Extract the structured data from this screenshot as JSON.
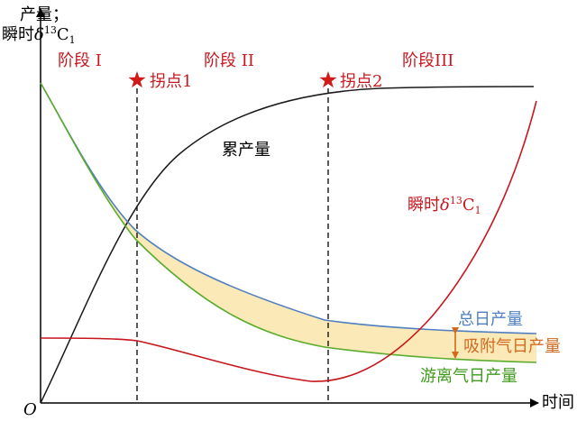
{
  "axis": {
    "y_label_line1": "产量；",
    "y_label_line2_prefix": "瞬时",
    "y_label_delta": "δ",
    "y_label_sup": "13",
    "y_label_c": "C",
    "y_label_sub": "1",
    "x_label": "时间",
    "origin": "O"
  },
  "stages": [
    "阶段 I",
    "阶段 II",
    "阶段III"
  ],
  "inflections": [
    {
      "label": "拐点1",
      "marker": "star-icon"
    },
    {
      "label": "拐点2",
      "marker": "star-icon"
    }
  ],
  "curves": {
    "cumulative": "累产量",
    "isotope_prefix": "瞬时",
    "isotope_delta": "δ",
    "isotope_sup": "13",
    "isotope_c": "C",
    "isotope_sub": "1",
    "total": "总日产量",
    "adsorbed": "吸附气日产量",
    "free": "游离气日产量"
  },
  "colors": {
    "axis": "#000000",
    "cumulative": "#1a1a1a",
    "isotope": "#c8161d",
    "total": "#4f7fc0",
    "free": "#5aac2e",
    "adsorbed_fill": "#fbeab8",
    "adsorbed_label": "#d2691e",
    "star": "#d11a1a",
    "stage_label": "#c8161d"
  }
}
